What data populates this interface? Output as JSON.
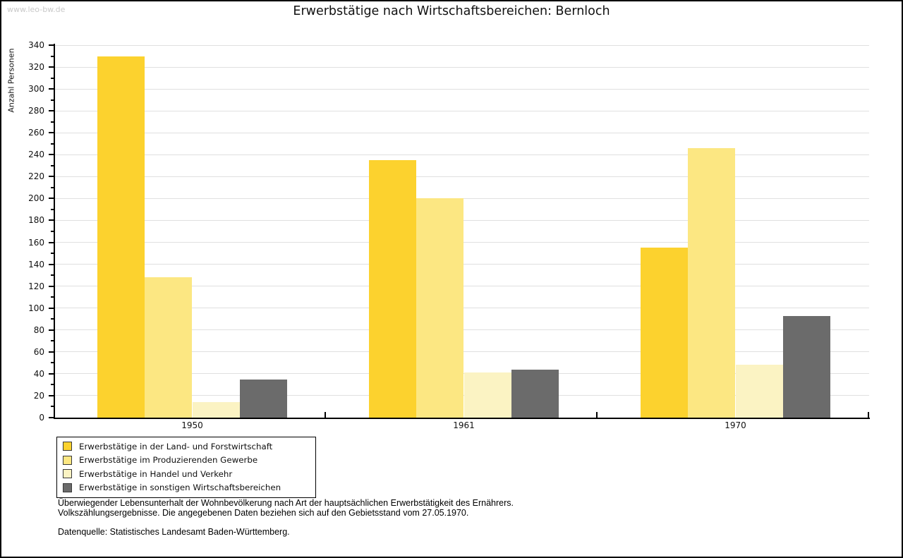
{
  "watermark": "www.leo-bw.de",
  "chart_data": {
    "type": "bar",
    "title": "Erwerbstätige nach Wirtschaftsbereichen: Bernloch",
    "xlabel": "",
    "ylabel": "Anzahl Personen",
    "categories": [
      "1950",
      "1961",
      "1970"
    ],
    "series": [
      {
        "name": "Erwerbstätige in der Land- und Forstwirtschaft",
        "color": "#FCD22E",
        "values": [
          330,
          235,
          155
        ]
      },
      {
        "name": "Erwerbstätige im Produzierenden Gewerbe",
        "color": "#FCE782",
        "values": [
          128,
          200,
          246
        ]
      },
      {
        "name": "Erwerbstätige in Handel und Verkehr",
        "color": "#FBF3C3",
        "values": [
          14,
          41,
          48
        ]
      },
      {
        "name": "Erwerbstätige in sonstigen Wirtschaftsbereichen",
        "color": "#6B6B6B",
        "values": [
          35,
          44,
          93
        ]
      }
    ],
    "ylim": [
      0,
      340
    ],
    "ytick_step": 20,
    "yticks": [
      0,
      20,
      40,
      60,
      80,
      100,
      120,
      140,
      160,
      180,
      200,
      220,
      240,
      260,
      280,
      300,
      320,
      340
    ],
    "grid": true,
    "legend_position": "bottom-left",
    "gridline_color": "#e0e0e0"
  },
  "footer": {
    "line1": "Überwiegender Lebensunterhalt der Wohnbevölkerung nach Art der hauptsächlichen Erwerbstätigkeit des Ernährers.",
    "line2": "Volkszählungsergebnisse. Die angegebenen Daten beziehen sich auf den Gebietsstand vom 27.05.1970.",
    "source": "Datenquelle: Statistisches Landesamt Baden-Württemberg."
  }
}
